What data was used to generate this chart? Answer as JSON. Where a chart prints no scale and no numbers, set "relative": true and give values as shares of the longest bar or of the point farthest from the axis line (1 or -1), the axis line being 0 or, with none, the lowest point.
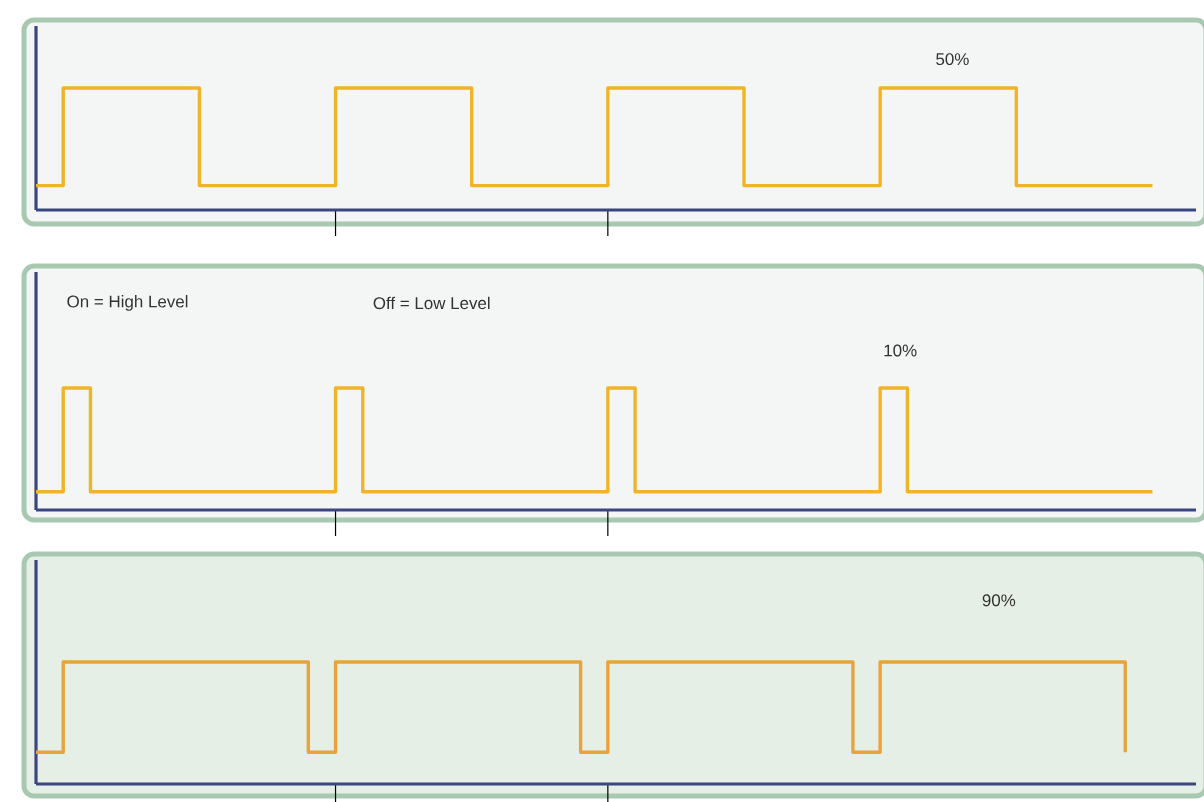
{
  "chart_data": [
    {
      "type": "step",
      "relative": true,
      "color": "#f0b429",
      "categories": [
        null,
        null,
        null,
        null,
        null,
        null,
        null,
        null,
        null,
        null,
        null,
        null,
        null,
        null,
        null,
        null,
        null,
        null,
        null,
        null,
        null,
        null,
        null,
        null,
        null,
        null,
        null,
        null,
        null,
        null,
        null,
        null,
        null,
        null,
        null,
        null,
        null,
        null,
        null,
        null,
        null,
        null
      ],
      "values": [
        0.2,
        1,
        1,
        1,
        1,
        1,
        0.2,
        0.2,
        0.2,
        0.2,
        0.2,
        1,
        1,
        1,
        1,
        1,
        0.2,
        0.2,
        0.2,
        0.2,
        0.2,
        1,
        1,
        1,
        1,
        1,
        0.2,
        0.2,
        0.2,
        0.2,
        0.2,
        1,
        1,
        1,
        1,
        1,
        0.2,
        0.2,
        0.2,
        0.2,
        0.2,
        0.2
      ],
      "annotations": [
        "50%"
      ]
    },
    {
      "type": "step",
      "relative": true,
      "color": "#f0b429",
      "categories": [
        null,
        null,
        null,
        null,
        null,
        null,
        null,
        null,
        null,
        null,
        null,
        null,
        null,
        null,
        null,
        null,
        null,
        null,
        null,
        null,
        null,
        null,
        null,
        null,
        null,
        null,
        null,
        null,
        null,
        null,
        null,
        null,
        null,
        null,
        null,
        null,
        null,
        null,
        null,
        null,
        null,
        null
      ],
      "values": [
        0.15,
        1,
        0.15,
        0.15,
        0.15,
        0.15,
        0.15,
        0.15,
        0.15,
        0.15,
        0.15,
        1,
        0.15,
        0.15,
        0.15,
        0.15,
        0.15,
        0.15,
        0.15,
        0.15,
        0.15,
        1,
        0.15,
        0.15,
        0.15,
        0.15,
        0.15,
        0.15,
        0.15,
        0.15,
        0.15,
        1,
        0.15,
        0.15,
        0.15,
        0.15,
        0.15,
        0.15,
        0.15,
        0.15,
        0.15,
        0.15
      ],
      "annotations": [
        "On = High Level",
        "Off = Low Level",
        "10%"
      ]
    },
    {
      "type": "step",
      "relative": true,
      "color": "#e8a33a",
      "categories": [
        null,
        null,
        null,
        null,
        null,
        null,
        null,
        null,
        null,
        null,
        null,
        null,
        null,
        null,
        null,
        null,
        null,
        null,
        null,
        null,
        null,
        null,
        null,
        null,
        null,
        null,
        null,
        null,
        null,
        null,
        null,
        null,
        null,
        null,
        null,
        null,
        null,
        null,
        null,
        null,
        null
      ],
      "values": [
        0.26,
        1,
        1,
        1,
        1,
        1,
        1,
        1,
        1,
        1,
        0.26,
        1,
        1,
        1,
        1,
        1,
        1,
        1,
        1,
        1,
        0.26,
        1,
        1,
        1,
        1,
        1,
        1,
        1,
        1,
        1,
        0.26,
        1,
        1,
        1,
        1,
        1,
        1,
        1,
        1,
        1,
        0.26
      ],
      "annotations": [
        "90%"
      ]
    }
  ]
}
